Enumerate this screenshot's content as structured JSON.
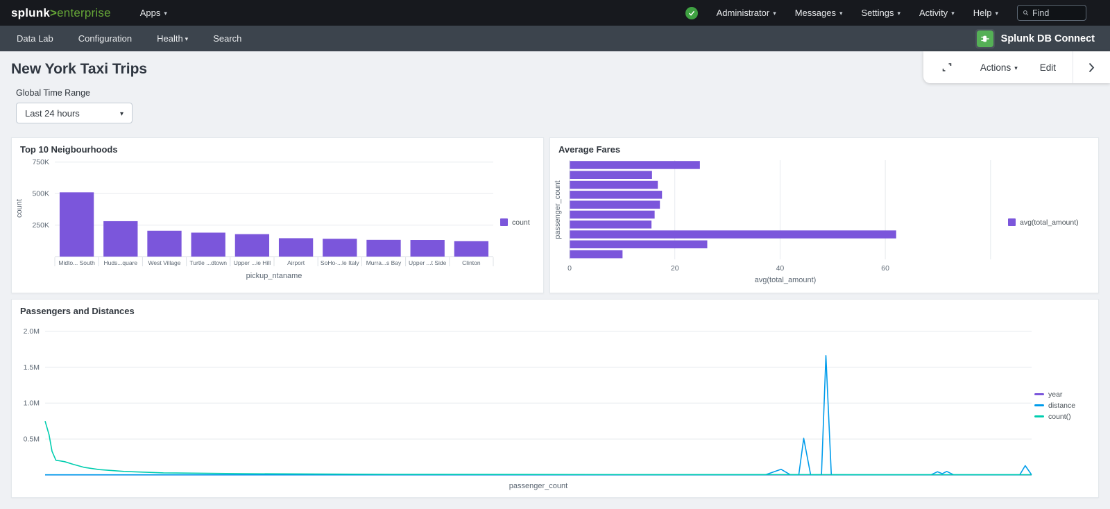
{
  "topnav": {
    "logo_splunk": "splunk",
    "logo_gt": ">",
    "logo_product": "enterprise",
    "apps": "Apps",
    "administrator": "Administrator",
    "messages": "Messages",
    "settings": "Settings",
    "activity": "Activity",
    "help": "Help",
    "find_placeholder": "Find"
  },
  "appnav": {
    "items": [
      {
        "label": "Data Lab"
      },
      {
        "label": "Configuration"
      },
      {
        "label": "Health"
      },
      {
        "label": "Search"
      }
    ],
    "app_name": "Splunk DB Connect"
  },
  "toolbar": {
    "actions": "Actions",
    "edit": "Edit"
  },
  "page": {
    "title": "New York Taxi Trips",
    "time_range_label": "Global Time Range",
    "time_range_value": "Last 24 hours"
  },
  "colors": {
    "purple": "#7B56DB",
    "blue": "#009CEB",
    "teal": "#00CDAF",
    "grid": "#E6EAEE",
    "axis_text": "#5C6773"
  },
  "chart_data": [
    {
      "type": "bar",
      "title": "Top 10 Neigbourhoods",
      "categories": [
        "Midto... South",
        "Huds...quare",
        "West Village",
        "Turtle ...dtown",
        "Upper ...ie Hill",
        "Airport",
        "SoHo-...le Italy",
        "Murra...s Bay",
        "Upper ...t Side",
        "Clinton"
      ],
      "values": [
        510000,
        281000,
        205000,
        190000,
        178000,
        146000,
        141000,
        133000,
        132000,
        122000
      ],
      "xlabel": "pickup_ntaname",
      "ylabel": "count",
      "yticks": [
        {
          "v": 250000,
          "label": "250K"
        },
        {
          "v": 500000,
          "label": "500K"
        },
        {
          "v": 750000,
          "label": "750K"
        }
      ],
      "ylim": [
        0,
        765000
      ],
      "bar_color": "#7B56DB",
      "legend": [
        {
          "label": "count",
          "color": "#7B56DB"
        }
      ]
    },
    {
      "type": "bar-horizontal",
      "title": "Average Fares",
      "values": [
        24.7,
        15.6,
        16.7,
        17.5,
        17.1,
        16.1,
        15.5,
        62,
        26.1,
        10
      ],
      "xlabel": "avg(total_amount)",
      "ylabel": "passenger_count",
      "xticks": [
        {
          "v": 0,
          "label": "0"
        },
        {
          "v": 20,
          "label": "20"
        },
        {
          "v": 40,
          "label": "40"
        },
        {
          "v": 60,
          "label": "60"
        }
      ],
      "xgrid": [
        0,
        20,
        40,
        60,
        80
      ],
      "xlim": [
        0,
        82
      ],
      "bar_color": "#7B56DB",
      "legend": [
        {
          "label": "avg(total_amount)",
          "color": "#7B56DB"
        }
      ]
    },
    {
      "type": "line",
      "title": "Passengers and Distances",
      "xlabel": "passenger_count",
      "yticks": [
        {
          "v": 500000,
          "label": "0.5M"
        },
        {
          "v": 1000000,
          "label": "1.0M"
        },
        {
          "v": 1500000,
          "label": "1.5M"
        },
        {
          "v": 2000000,
          "label": "2.0M"
        }
      ],
      "ylim": [
        0,
        2130000
      ],
      "series": [
        {
          "name": "year",
          "color": "#7B56DB",
          "points": [
            [
              0,
              2000
            ],
            [
              1,
              2000
            ]
          ]
        },
        {
          "name": "distance",
          "color": "#009CEB",
          "points": [
            [
              0,
              3000
            ],
            [
              0.73,
              3000
            ],
            [
              0.746,
              80000
            ],
            [
              0.7555,
              3000
            ],
            [
              0.764,
              3000
            ],
            [
              0.769,
              510000
            ],
            [
              0.776,
              3000
            ],
            [
              0.787,
              3000
            ],
            [
              0.7915,
              1660000
            ],
            [
              0.797,
              3000
            ],
            [
              0.898,
              3000
            ],
            [
              0.9045,
              45000
            ],
            [
              0.9095,
              18000
            ],
            [
              0.914,
              50000
            ],
            [
              0.921,
              3000
            ],
            [
              0.988,
              3000
            ],
            [
              0.9935,
              130000
            ],
            [
              1,
              3000
            ]
          ]
        },
        {
          "name": "count()",
          "color": "#00CDAF",
          "points": [
            [
              0,
              750000
            ],
            [
              0.004,
              560000
            ],
            [
              0.007,
              330000
            ],
            [
              0.011,
              205000
            ],
            [
              0.016,
              195000
            ],
            [
              0.02,
              185000
            ],
            [
              0.028,
              150000
            ],
            [
              0.04,
              105000
            ],
            [
              0.055,
              75000
            ],
            [
              0.08,
              50000
            ],
            [
              0.12,
              30000
            ],
            [
              0.2,
              18000
            ],
            [
              0.35,
              10000
            ],
            [
              0.6,
              6000
            ],
            [
              1,
              4000
            ]
          ]
        }
      ],
      "legend": [
        {
          "label": "year",
          "color": "#7B56DB"
        },
        {
          "label": "distance",
          "color": "#009CEB"
        },
        {
          "label": "count()",
          "color": "#00CDAF"
        }
      ]
    }
  ]
}
